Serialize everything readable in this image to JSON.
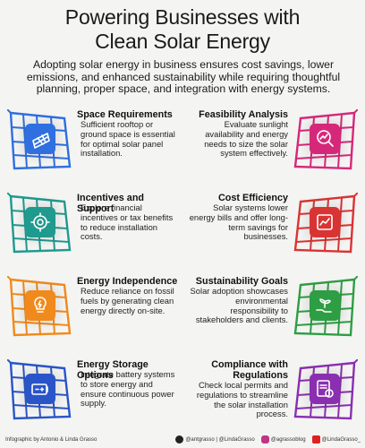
{
  "header": {
    "title_line1": "Powering Businesses with",
    "title_line2": "Clean Solar Energy",
    "intro": "Adopting solar energy in business ensures cost savings, lower emissions, and enhanced sustainability while requiring thoughtful planning, proper space, and integration with energy systems."
  },
  "cards": [
    {
      "title": "Space Requirements",
      "description": "Sufficient rooftop or ground space is essential for optimal solar panel installation.",
      "color": "#2f6fe0",
      "icon": "solar-panel-icon"
    },
    {
      "title": "Feasibility Analysis",
      "description": "Evaluate sunlight availability and energy needs to size the solar system effectively.",
      "color": "#d6287a",
      "icon": "magnifier-chart-icon"
    },
    {
      "title": "Incentives and Support",
      "description": "Explore financial incentives or tax benefits to reduce installation costs.",
      "color": "#1f9a8e",
      "icon": "gear-dollar-icon"
    },
    {
      "title": "Cost Efficiency",
      "description": "Solar systems lower energy bills and offer long-term savings for businesses.",
      "color": "#d93434",
      "icon": "savings-chart-icon"
    },
    {
      "title": "Energy Independence",
      "description": "Reduce reliance on fossil fuels by generating clean energy directly on-site.",
      "color": "#f08a1c",
      "icon": "lightbulb-icon"
    },
    {
      "title": "Sustainability Goals",
      "description": "Solar adoption showcases environmental responsibility to stakeholders and clients.",
      "color": "#2e9e44",
      "icon": "plant-hand-icon"
    },
    {
      "title": "Energy Storage Options",
      "description": "Integrate battery systems to store energy and ensure continuous power supply.",
      "color": "#2a55c8",
      "icon": "battery-icon"
    },
    {
      "title": "Compliance with Regulations",
      "description": "Check local permits and regulations to streamline the solar installation process.",
      "color": "#8a2fb0",
      "icon": "document-alert-icon"
    }
  ],
  "footer": {
    "credit": "Infographic by Antonio & Linda Grasso",
    "twitter": "@antgrasso | @LindaGrasso",
    "instagram": "@agrassoblog",
    "youtube": "@LindaGrasso_"
  }
}
